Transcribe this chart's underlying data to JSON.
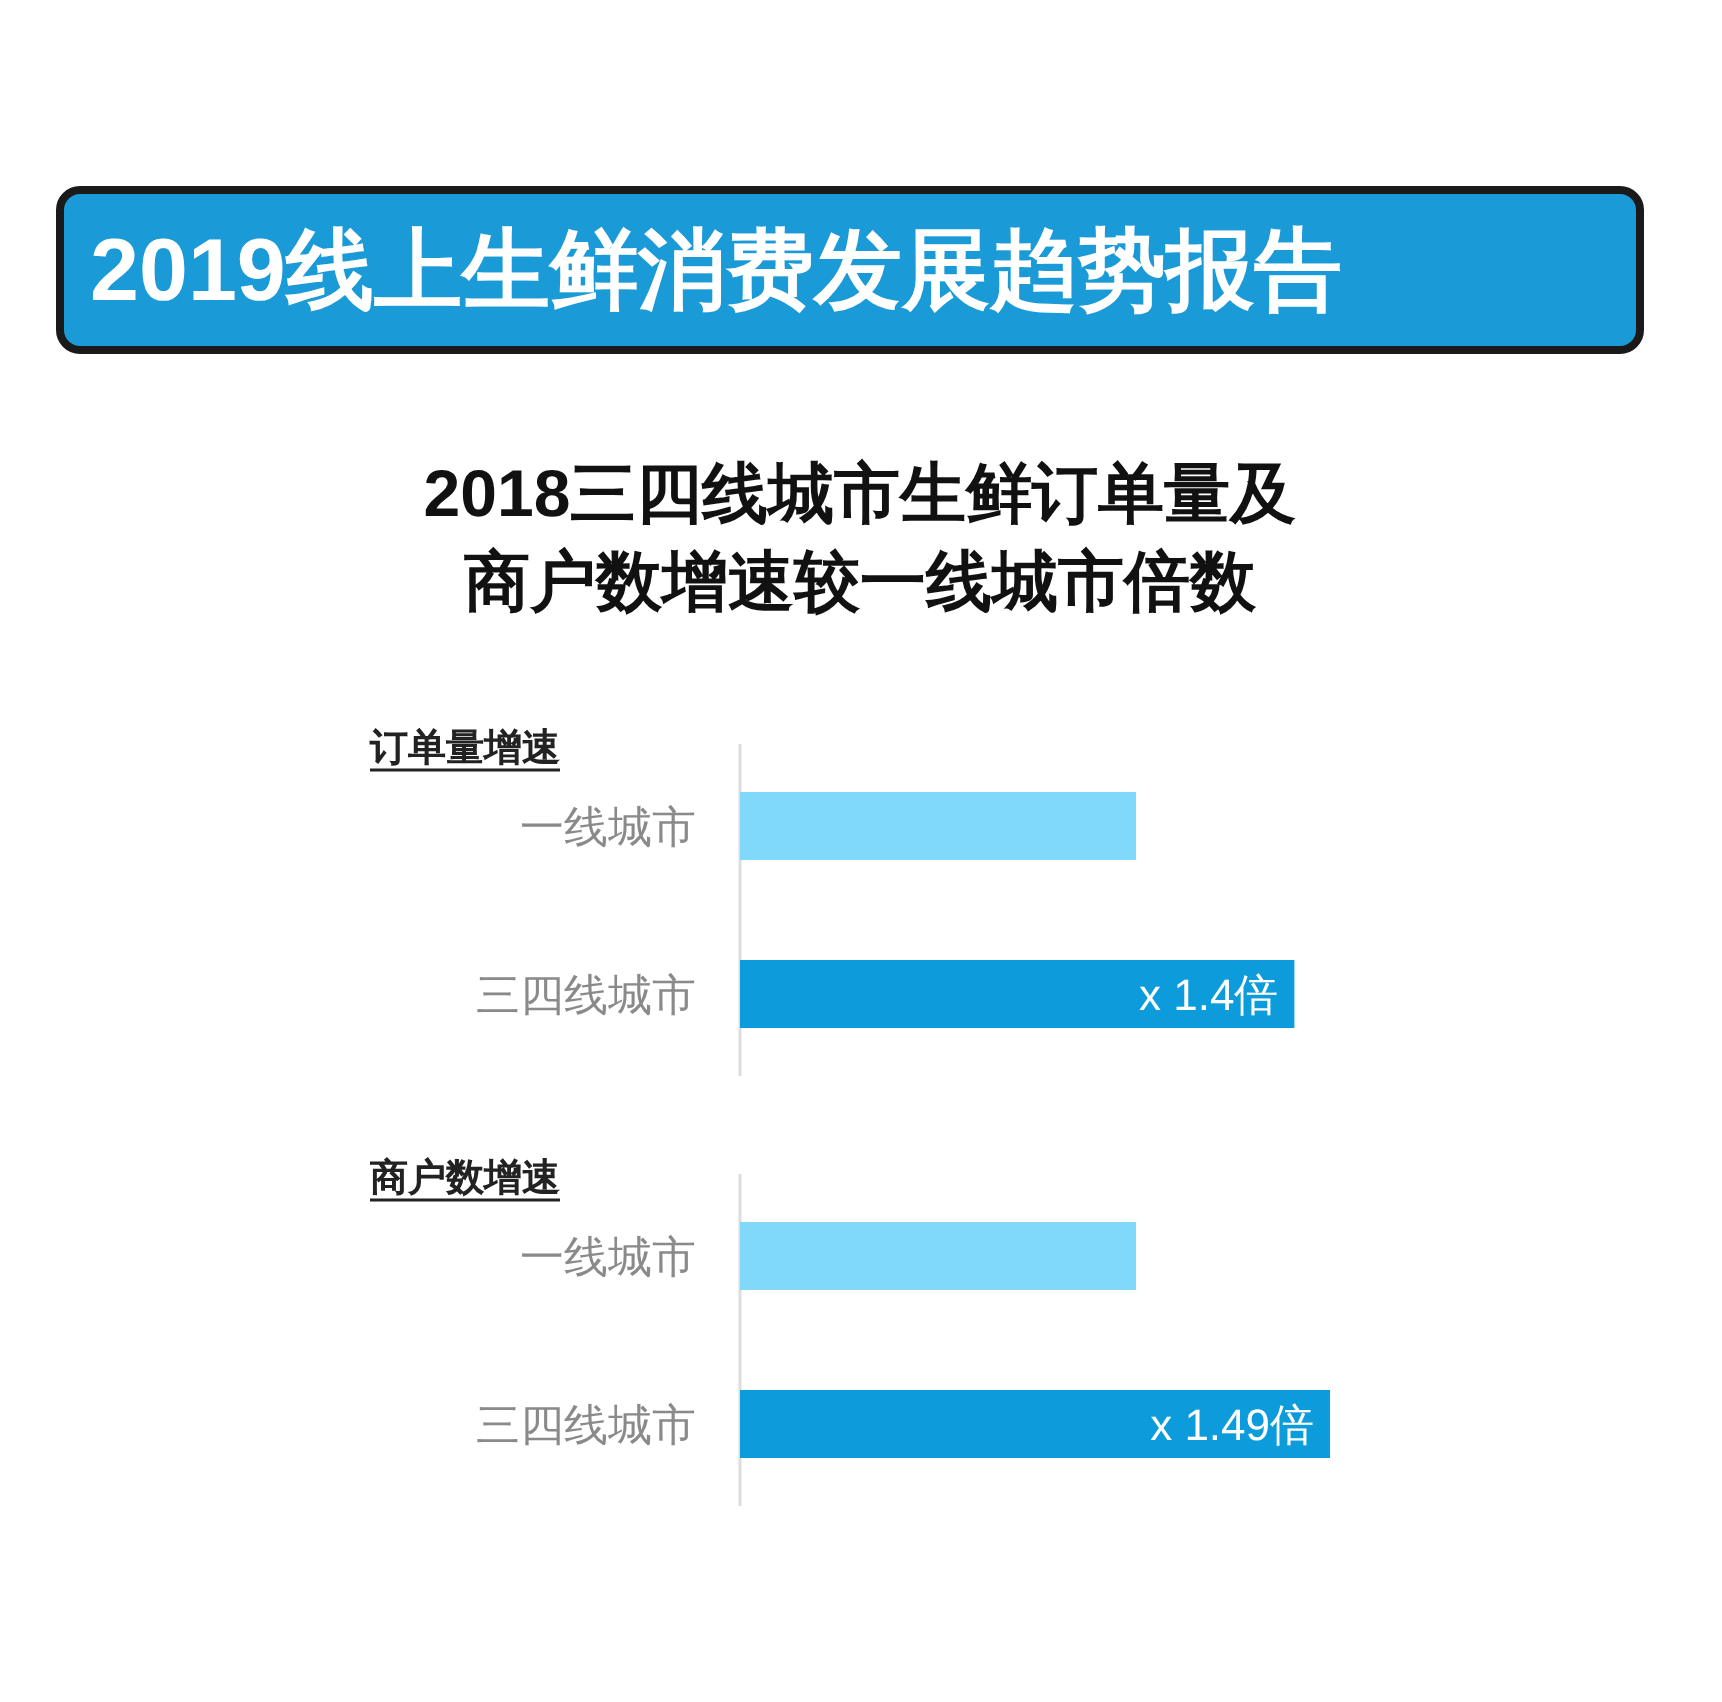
{
  "chart_data": [
    {
      "type": "other",
      "title": "2019线上生鲜消费发展趋势报告",
      "subtitle": [
        "2018三四线城市生鲜订单量及",
        "商户数增速较一线城市倍数"
      ]
    },
    {
      "type": "bar",
      "orientation": "horizontal",
      "title": "订单量增速",
      "categories": [
        "一线城市",
        "三四线城市"
      ],
      "values": [
        1,
        1.4
      ],
      "colors": [
        "#80d8fa",
        "#0c9bdb"
      ],
      "value_labels": [
        null,
        "x 1.4倍"
      ]
    },
    {
      "type": "bar",
      "orientation": "horizontal",
      "title": "商户数增速",
      "categories": [
        "一线城市",
        "三四线城市"
      ],
      "values": [
        1,
        1.49
      ],
      "colors": [
        "#80d8fa",
        "#0c9bdb"
      ],
      "value_labels": [
        null,
        "x 1.49倍"
      ]
    }
  ]
}
